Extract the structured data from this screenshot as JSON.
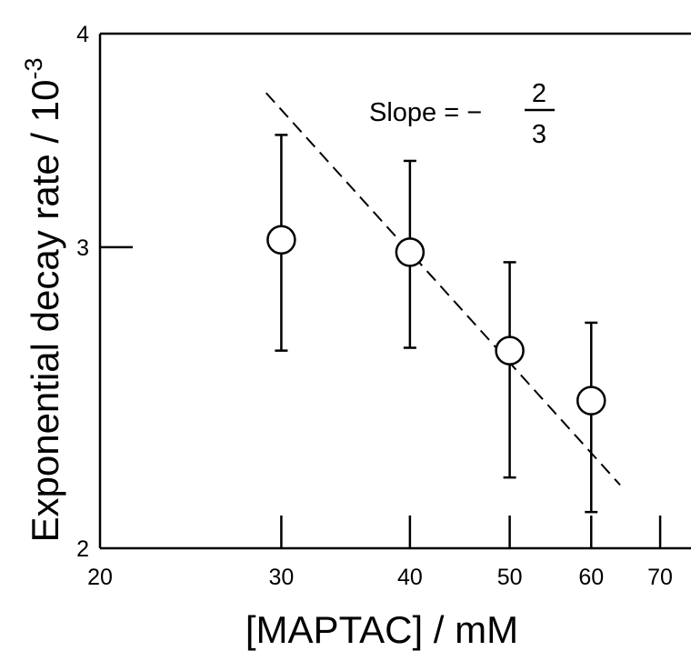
{
  "chart_data": {
    "type": "scatter",
    "xlabel": "[MAPTAC] / mM",
    "ylabel_main": "Exponential decay rate / 10",
    "ylabel_exp": "-3",
    "xscale": "log",
    "yscale": "log",
    "xlim": [
      20,
      75
    ],
    "ylim": [
      2,
      4
    ],
    "xticks": [
      20,
      30,
      40,
      50,
      60,
      70
    ],
    "yticks": [
      2,
      3,
      4
    ],
    "grid": false,
    "series": [
      {
        "points": [
          {
            "x": 30,
            "y": 3.03,
            "err_low": 2.61,
            "err_high": 3.49
          },
          {
            "x": 40,
            "y": 2.98,
            "err_low": 2.62,
            "err_high": 3.37
          },
          {
            "x": 50,
            "y": 2.61,
            "err_low": 2.2,
            "err_high": 2.94
          },
          {
            "x": 60,
            "y": 2.44,
            "err_low": 2.1,
            "err_high": 2.71
          }
        ]
      }
    ],
    "fit_line": {
      "x_start": 29,
      "x_end": 64,
      "slope": -0.667,
      "style": "dashed"
    },
    "annotation": {
      "prefix": "Slope = −",
      "numerator": "2",
      "denominator": "3"
    }
  }
}
